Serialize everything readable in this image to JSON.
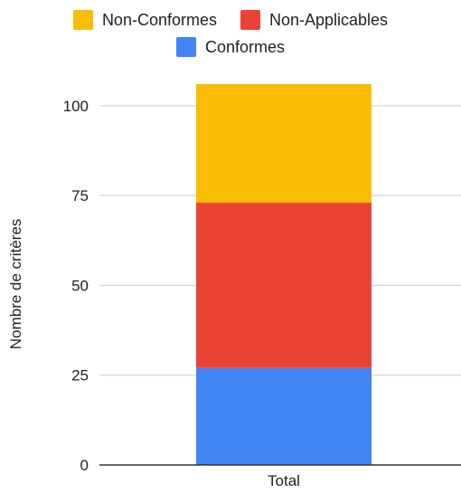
{
  "chart_data": {
    "type": "bar",
    "stacked": true,
    "categories": [
      "Total"
    ],
    "series": [
      {
        "name": "Conformes",
        "values": [
          27
        ],
        "color": "#4285F4"
      },
      {
        "name": "Non-Applicables",
        "values": [
          46
        ],
        "color": "#EA4335"
      },
      {
        "name": "Non-Conformes",
        "values": [
          33
        ],
        "color": "#FBBC04"
      }
    ],
    "legend": {
      "placement": "top",
      "order": [
        "Non-Conformes",
        "Non-Applicables",
        "Conformes"
      ]
    },
    "xlabel": "",
    "ylabel": "Nombre de critères",
    "ylim": [
      0,
      110
    ],
    "yticks": [
      0,
      25,
      50,
      75,
      100
    ],
    "grid": true
  }
}
